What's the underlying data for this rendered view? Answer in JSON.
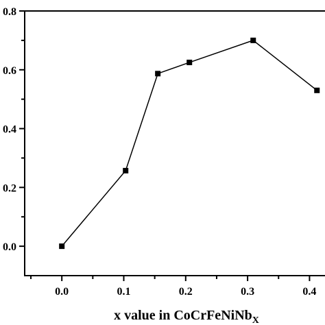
{
  "chart_data": {
    "type": "line",
    "title": "",
    "xlabel": {
      "main": "x value in CoCrFeNiNb",
      "sub": "X"
    },
    "ylabel": "",
    "xlim": [
      -0.06,
      0.425
    ],
    "ylim": [
      -0.1,
      0.8
    ],
    "xticks": [
      0.0,
      0.1,
      0.2,
      0.3,
      0.4
    ],
    "xtick_labels": [
      "0.0",
      "0.1",
      "0.2",
      "0.3",
      "0.4"
    ],
    "yticks": [
      0.0,
      0.2,
      0.4,
      0.6,
      0.8
    ],
    "ytick_labels": [
      "0.0",
      "0.2",
      "0.4",
      "0.6",
      "0.8"
    ],
    "grid": false,
    "marker": "square",
    "color": "#000000",
    "series": [
      {
        "x": [
          0.0,
          0.103,
          0.155,
          0.206,
          0.309,
          0.412
        ],
        "y": [
          0.0,
          0.257,
          0.587,
          0.625,
          0.7,
          0.53
        ]
      }
    ]
  }
}
